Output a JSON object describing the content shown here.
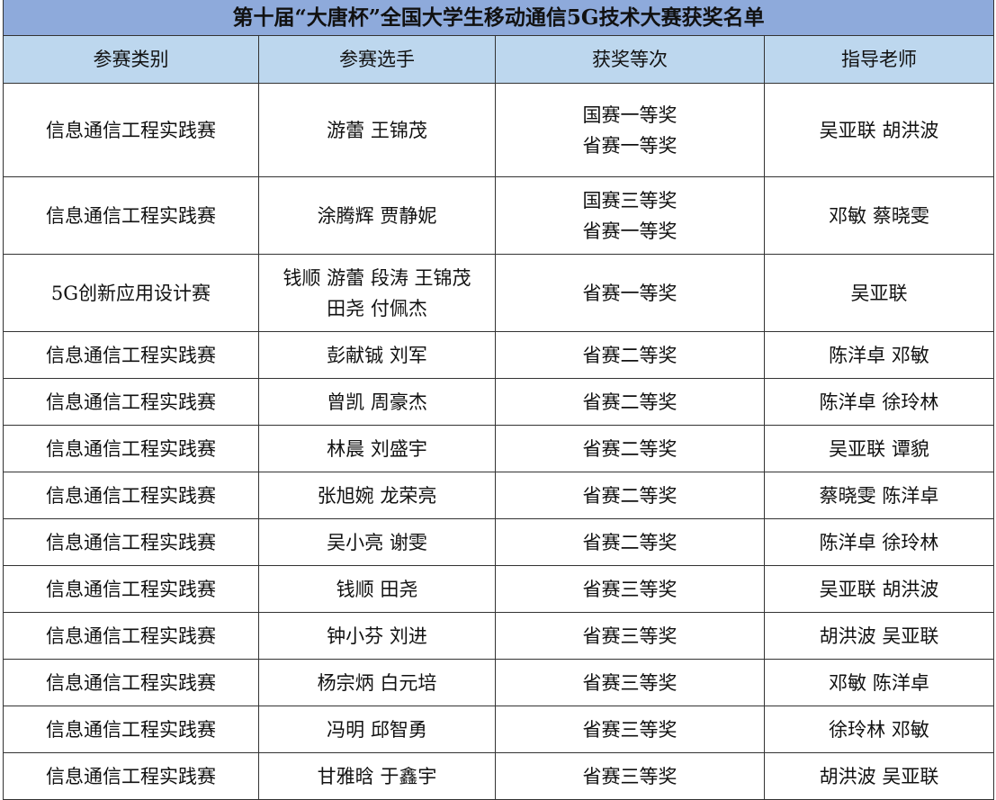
{
  "title": "第十届“大唐杯”全国大学生移动通信5G技术大赛获奖名单",
  "columns": [
    "参赛类别",
    "参赛选手",
    "获奖等次",
    "指导老师"
  ],
  "rows": [
    {
      "category": "信息通信工程实践赛",
      "players": [
        "游蕾 王锦茂"
      ],
      "awards": [
        "国赛一等奖",
        "省赛一等奖"
      ],
      "advisors": "吴亚联 胡洪波"
    },
    {
      "category": "信息通信工程实践赛",
      "players": [
        "涂腾辉 贾静妮"
      ],
      "awards": [
        "国赛三等奖",
        "省赛一等奖"
      ],
      "advisors": "邓敏 蔡晓雯"
    },
    {
      "category": "5G创新应用设计赛",
      "players": [
        "钱顺 游蕾 段涛 王锦茂",
        "田尧 付佩杰"
      ],
      "awards": [
        "省赛一等奖"
      ],
      "advisors": "吴亚联"
    },
    {
      "category": "信息通信工程实践赛",
      "players": [
        "彭献铖 刘军"
      ],
      "awards": [
        "省赛二等奖"
      ],
      "advisors": "陈洋卓 邓敏"
    },
    {
      "category": "信息通信工程实践赛",
      "players": [
        "曾凯 周豪杰"
      ],
      "awards": [
        "省赛二等奖"
      ],
      "advisors": "陈洋卓 徐玲林"
    },
    {
      "category": "信息通信工程实践赛",
      "players": [
        "林晨 刘盛宇"
      ],
      "awards": [
        "省赛二等奖"
      ],
      "advisors": "吴亚联 谭貌"
    },
    {
      "category": "信息通信工程实践赛",
      "players": [
        "张旭婉 龙荣亮"
      ],
      "awards": [
        "省赛二等奖"
      ],
      "advisors": "蔡晓雯 陈洋卓"
    },
    {
      "category": "信息通信工程实践赛",
      "players": [
        "吴小亮 谢雯"
      ],
      "awards": [
        "省赛二等奖"
      ],
      "advisors": "陈洋卓 徐玲林"
    },
    {
      "category": "信息通信工程实践赛",
      "players": [
        "钱顺 田尧"
      ],
      "awards": [
        "省赛三等奖"
      ],
      "advisors": "吴亚联 胡洪波"
    },
    {
      "category": "信息通信工程实践赛",
      "players": [
        "钟小芬 刘进"
      ],
      "awards": [
        "省赛三等奖"
      ],
      "advisors": "胡洪波 吴亚联"
    },
    {
      "category": "信息通信工程实践赛",
      "players": [
        "杨宗炳 白元培"
      ],
      "awards": [
        "省赛三等奖"
      ],
      "advisors": "邓敏 陈洋卓"
    },
    {
      "category": "信息通信工程实践赛",
      "players": [
        "冯明 邱智勇"
      ],
      "awards": [
        "省赛三等奖"
      ],
      "advisors": "徐玲林 邓敏"
    },
    {
      "category": "信息通信工程实践赛",
      "players": [
        "甘雅晗 于鑫宇"
      ],
      "awards": [
        "省赛三等奖"
      ],
      "advisors": "胡洪波 吴亚联"
    }
  ]
}
